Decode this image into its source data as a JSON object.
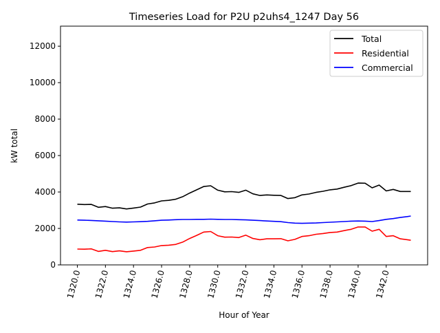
{
  "chart_data": {
    "type": "line",
    "title": "Timeseries Load for P2U p2uhs4_1247  Day 56",
    "xlabel": "Hour of Year",
    "ylabel": "kW total",
    "xlim": [
      1318.8,
      1344.95
    ],
    "ylim": [
      0,
      13100
    ],
    "xticks": [
      1320,
      1322,
      1324,
      1326,
      1328,
      1330,
      1332,
      1334,
      1336,
      1338,
      1340,
      1342
    ],
    "xtick_labels": [
      "1320.0",
      "1322.0",
      "1324.0",
      "1326.0",
      "1328.0",
      "1330.0",
      "1332.0",
      "1334.0",
      "1336.0",
      "1338.0",
      "1340.0",
      "1342.0"
    ],
    "yticks": [
      0,
      2000,
      4000,
      6000,
      8000,
      10000,
      12000
    ],
    "ytick_labels": [
      "0",
      "2000",
      "4000",
      "6000",
      "8000",
      "10000",
      "12000"
    ],
    "grid": false,
    "legend_position": "top-right",
    "x": [
      1320,
      1320.5,
      1321,
      1321.5,
      1322,
      1322.5,
      1323,
      1323.5,
      1324,
      1324.5,
      1325,
      1325.5,
      1326,
      1326.5,
      1327,
      1327.5,
      1328,
      1328.5,
      1329,
      1329.5,
      1330,
      1330.5,
      1331,
      1331.5,
      1332,
      1332.5,
      1333,
      1333.5,
      1334,
      1334.5,
      1335,
      1335.5,
      1336,
      1336.5,
      1337,
      1337.5,
      1338,
      1338.5,
      1339,
      1339.5,
      1340,
      1340.5,
      1341,
      1341.5,
      1342,
      1342.5,
      1343,
      1343.5,
      1343.75
    ],
    "series": [
      {
        "name": "Total",
        "color": "#000000",
        "values": [
          3330,
          3310,
          3320,
          3160,
          3200,
          3110,
          3130,
          3070,
          3120,
          3170,
          3340,
          3400,
          3510,
          3540,
          3600,
          3740,
          3940,
          4120,
          4300,
          4340,
          4100,
          4010,
          4020,
          3980,
          4100,
          3900,
          3810,
          3840,
          3820,
          3810,
          3640,
          3690,
          3840,
          3890,
          3980,
          4040,
          4120,
          4160,
          4260,
          4350,
          4490,
          4480,
          4230,
          4380,
          4060,
          4140,
          4030,
          4030,
          4030
        ]
      },
      {
        "name": "Residential",
        "color": "#ff0000",
        "values": [
          870,
          860,
          880,
          740,
          800,
          730,
          770,
          720,
          760,
          800,
          950,
          980,
          1060,
          1080,
          1120,
          1250,
          1450,
          1620,
          1800,
          1830,
          1600,
          1520,
          1530,
          1500,
          1630,
          1450,
          1380,
          1430,
          1430,
          1440,
          1320,
          1400,
          1560,
          1600,
          1680,
          1720,
          1780,
          1800,
          1880,
          1950,
          2080,
          2080,
          1850,
          1950,
          1560,
          1600,
          1430,
          1380,
          1350
        ]
      },
      {
        "name": "Commercial",
        "color": "#0000ff",
        "values": [
          2460,
          2450,
          2440,
          2420,
          2400,
          2380,
          2360,
          2350,
          2360,
          2370,
          2390,
          2420,
          2450,
          2460,
          2480,
          2490,
          2490,
          2500,
          2500,
          2510,
          2500,
          2490,
          2490,
          2480,
          2470,
          2450,
          2430,
          2410,
          2390,
          2370,
          2320,
          2290,
          2280,
          2290,
          2300,
          2320,
          2340,
          2360,
          2380,
          2400,
          2410,
          2400,
          2380,
          2430,
          2500,
          2540,
          2600,
          2650,
          2680
        ]
      }
    ]
  }
}
